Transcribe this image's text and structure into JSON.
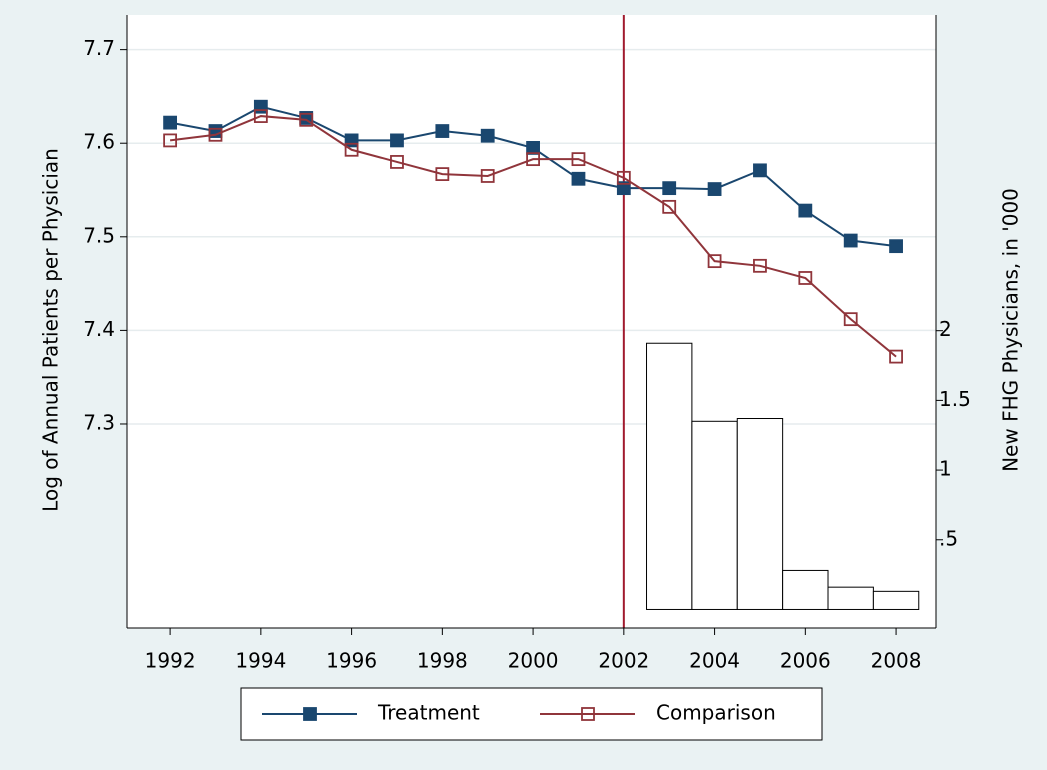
{
  "chart_data": {
    "type": "line",
    "y_label": "Log of Annual Patients per Physician",
    "y2_label": "New FHG Physicians, in '000",
    "x": [
      1992,
      1993,
      1994,
      1995,
      1996,
      1997,
      1998,
      1999,
      2000,
      2001,
      2002,
      2003,
      2004,
      2005,
      2006,
      2007,
      2008
    ],
    "series": [
      {
        "name": "Treatment",
        "type": "line",
        "marker": "square-filled",
        "color": "#1a476f",
        "values": [
          7.622,
          7.613,
          7.639,
          7.627,
          7.603,
          7.603,
          7.613,
          7.608,
          7.595,
          7.562,
          7.552,
          7.552,
          7.551,
          7.571,
          7.528,
          7.496,
          7.49
        ]
      },
      {
        "name": "Comparison",
        "type": "line",
        "marker": "square-hollow",
        "color": "#90353b",
        "values": [
          7.603,
          7.609,
          7.629,
          7.625,
          7.593,
          7.58,
          7.567,
          7.565,
          7.583,
          7.583,
          7.563,
          7.532,
          7.474,
          7.469,
          7.456,
          7.412,
          7.372
        ]
      },
      {
        "type": "bar",
        "axis": "y2",
        "color": "#ffffff",
        "values": [
          null,
          null,
          null,
          null,
          null,
          null,
          null,
          null,
          null,
          null,
          null,
          1.91,
          1.35,
          1.37,
          0.28,
          0.16,
          0.13
        ]
      }
    ],
    "xlim": [
      1991.05,
      2008.88
    ],
    "xticks": [
      1992,
      1994,
      1996,
      1998,
      2000,
      2002,
      2004,
      2006,
      2008
    ],
    "ylim": [
      7.082,
      7.737
    ],
    "yticks": [
      7.3,
      7.4,
      7.5,
      7.6,
      7.7
    ],
    "y2lim": [
      -0.133,
      4.265
    ],
    "y2ticks": [
      {
        "value": 0.5,
        "label": ".5"
      },
      1,
      1.5,
      2
    ],
    "vline": 2002,
    "vline_color": "#a01a2e",
    "grid": true,
    "legend": "bottom"
  }
}
